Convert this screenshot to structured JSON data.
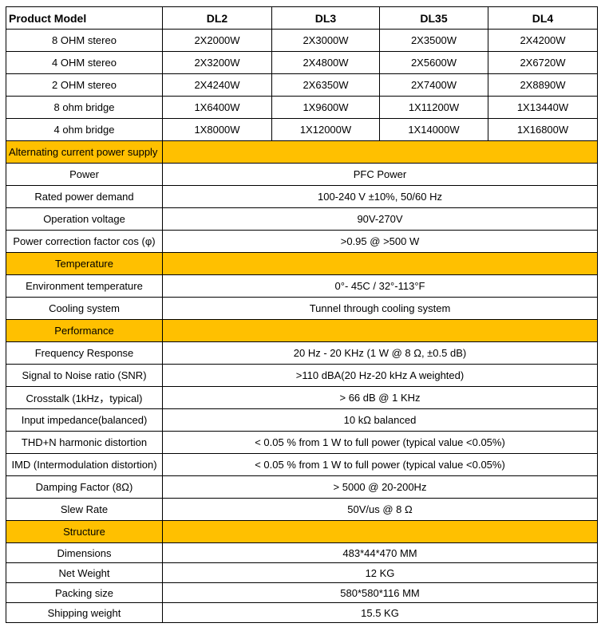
{
  "header": {
    "label": "Product Model",
    "models": [
      "DL2",
      "DL3",
      "DL35",
      "DL4"
    ]
  },
  "power_rows": [
    {
      "label": "8 OHM stereo",
      "values": [
        "2X2000W",
        "2X3000W",
        "2X3500W",
        "2X4200W"
      ]
    },
    {
      "label": "4 OHM stereo",
      "values": [
        "2X3200W",
        "2X4800W",
        "2X5600W",
        "2X6720W"
      ]
    },
    {
      "label": "2 OHM stereo",
      "values": [
        "2X4240W",
        "2X6350W",
        "2X7400W",
        "2X8890W"
      ]
    },
    {
      "label": "8 ohm bridge",
      "values": [
        "1X6400W",
        "1X9600W",
        "1X11200W",
        "1X13440W"
      ]
    },
    {
      "label": "4 ohm bridge",
      "values": [
        "1X8000W",
        "1X12000W",
        "1X14000W",
        "1X16800W"
      ]
    }
  ],
  "sections": {
    "ac": {
      "title": "Alternating current power supply",
      "rows": [
        {
          "label": "Power",
          "value": "PFC Power"
        },
        {
          "label": "Rated power demand",
          "value": "100-240 V ±10%, 50/60 Hz"
        },
        {
          "label": "Operation voltage",
          "value": "90V-270V"
        },
        {
          "label": "Power correction factor cos (φ)",
          "value": ">0.95 @ >500 W"
        }
      ]
    },
    "temp": {
      "title": "Temperature",
      "rows": [
        {
          "label": "Environment temperature",
          "value": "0°- 45C / 32°-113°F"
        },
        {
          "label": "Cooling system",
          "value": "Tunnel through cooling system"
        }
      ]
    },
    "perf": {
      "title": "Performance",
      "rows": [
        {
          "label": "Frequency Response",
          "value": "20 Hz - 20 KHz (1 W @ 8 Ω, ±0.5 dB)"
        },
        {
          "label": "Signal to Noise ratio (SNR)",
          "value": ">110 dBA(20 Hz-20 kHz A weighted)"
        },
        {
          "label": "Crosstalk (1kHz，typical)",
          "value": "> 66 dB @ 1 KHz"
        },
        {
          "label": "Input impedance(balanced)",
          "value": "10 kΩ balanced"
        },
        {
          "label": "THD+N harmonic distortion",
          "value": "< 0.05 % from 1 W to full power (typical value <0.05%)"
        },
        {
          "label": "IMD (Intermodulation distortion)",
          "value": "< 0.05 % from 1 W to full power (typical value <0.05%)"
        },
        {
          "label": "Damping Factor (8Ω)",
          "value": "> 5000 @ 20-200Hz"
        },
        {
          "label": "Slew Rate",
          "value": "50V/us @ 8 Ω"
        }
      ]
    },
    "struct": {
      "title": "Structure",
      "rows": [
        {
          "label": "Dimensions",
          "value": "483*44*470 MM"
        },
        {
          "label": "Net Weight",
          "value": "12 KG"
        },
        {
          "label": "Packing size",
          "value": "580*580*116 MM"
        },
        {
          "label": "Shipping weight",
          "value": "15.5 KG"
        }
      ]
    }
  },
  "colors": {
    "section_bg": "#FFC000",
    "border": "#000000"
  }
}
